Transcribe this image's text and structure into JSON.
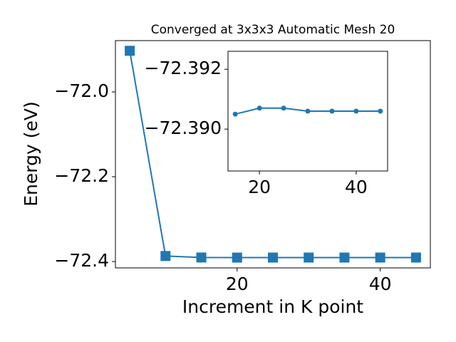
{
  "chart_data": [
    {
      "type": "line",
      "title": "Converged at 3x3x3 Automatic Mesh 20",
      "x_label": "Increment in K point",
      "y_label": "Energy (eV)",
      "x": [
        5,
        10,
        15,
        20,
        25,
        30,
        35,
        40,
        45
      ],
      "series": [
        {
          "color": "#1f77b4",
          "marker": "square",
          "values": [
            -71.903,
            -72.387,
            -72.3905,
            -72.3907,
            -72.3907,
            -72.3906,
            -72.3906,
            -72.3906,
            -72.3906
          ]
        }
      ],
      "xlim": [
        3,
        47
      ],
      "xticks": [
        20,
        40
      ],
      "ylim": [
        -72.415,
        -71.879
      ],
      "yticks": [
        {
          "value": -72.4,
          "label": "−72.4"
        },
        {
          "value": -72.2,
          "label": "−72.2"
        },
        {
          "value": -72.0,
          "label": "−72.0"
        }
      ]
    },
    {
      "type": "line",
      "x": [
        15,
        20,
        25,
        30,
        35,
        40,
        45
      ],
      "series": [
        {
          "color": "#1f77b4",
          "marker": "circle",
          "values": [
            -72.3905,
            -72.3907,
            -72.3907,
            -72.3906,
            -72.3906,
            -72.3906,
            -72.3906
          ]
        }
      ],
      "xlim": [
        13.5,
        46.5
      ],
      "xticks": [
        20,
        40
      ],
      "ylim": [
        -72.3886,
        -72.3926
      ],
      "yticks": [
        {
          "value": -72.39,
          "label": "−72.390"
        },
        {
          "value": -72.392,
          "label": "−72.392"
        }
      ]
    }
  ]
}
